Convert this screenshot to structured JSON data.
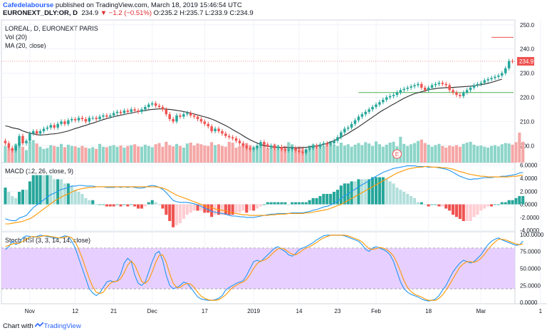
{
  "header": {
    "author": "Cafedelabourse",
    "published": "published on TradingView.com, March 18, 2019 15:46:54 UTC",
    "symbol": "EURONEXT_DLY:OR, D",
    "last": "234.9",
    "change": "−1.2 (−0.51%)",
    "ohlc": "O:235.2 H:235.7 L:233.9 C:234.9"
  },
  "legend": {
    "title": "LOREAL, D, EURONEXT PARIS",
    "vol": "Vol (20)",
    "ma": "MA (20, close)",
    "macd": "MACD (12, 26, close, 9)",
    "rsi": "Stoch RSI (3, 3, 14, 14, close)"
  },
  "footer": {
    "prefix": "Chart with",
    "brand": "TradingView"
  },
  "colors": {
    "up": "#26a69a",
    "down": "#ef5350",
    "ma": "#2b2b2b",
    "macd": "#2196f3",
    "signal": "#ff9800",
    "rsi_band": "#e1c4ff",
    "grid": "#f0f3fa",
    "hline_red": "#ef5350",
    "hline_green": "#4caf50"
  },
  "chart_data": [
    {
      "type": "candlestick",
      "pane": "price",
      "title": "LOREAL, D, EURONEXT PARIS",
      "ylim": [
        193,
        252
      ],
      "y_ticks": [
        200,
        210,
        220,
        230,
        240,
        250
      ],
      "x_labels": [
        {
          "i": 7,
          "label": "Nov"
        },
        {
          "i": 20,
          "label": "12"
        },
        {
          "i": 31,
          "label": "21"
        },
        {
          "i": 42,
          "label": "Dec"
        },
        {
          "i": 57,
          "label": "17"
        },
        {
          "i": 71,
          "label": "2019"
        },
        {
          "i": 84,
          "label": "14"
        },
        {
          "i": 95,
          "label": "23"
        },
        {
          "i": 106,
          "label": "Feb"
        },
        {
          "i": 121,
          "label": "18"
        },
        {
          "i": 136,
          "label": "Mar"
        },
        {
          "i": 153,
          "label": "1"
        }
      ],
      "last_price_label": "234.9",
      "horizontal_lines": [
        {
          "y": 244.8,
          "color": "red",
          "from": 139
        },
        {
          "y": 222,
          "color": "green",
          "from": 101
        }
      ],
      "earnings_marker": {
        "i": 112,
        "label": "E"
      },
      "close": [
        201,
        199,
        198,
        200,
        204,
        201,
        202,
        205,
        206,
        205,
        206,
        207,
        207.5,
        208.5,
        207.5,
        209,
        210,
        209,
        210.5,
        211,
        210.5,
        211.5,
        211,
        210,
        211.5,
        211.5,
        211,
        212,
        212.5,
        212,
        212.5,
        213.5,
        214,
        213.5,
        214.5,
        214,
        215,
        214.5,
        214,
        215,
        216,
        217,
        217.5,
        216.5,
        216,
        215,
        213,
        211,
        210,
        212.5,
        212,
        213,
        213.5,
        212.5,
        212,
        211,
        210,
        209,
        208,
        206,
        207,
        206,
        205,
        204,
        203.5,
        203,
        202,
        201,
        200,
        199,
        198.5,
        199,
        200,
        201.5,
        200.5,
        199.5,
        200,
        199,
        199.5,
        198.5,
        198,
        198.5,
        199,
        198,
        197.5,
        197,
        198.5,
        199,
        200,
        199.5,
        200.5,
        201,
        200.5,
        201,
        202,
        203.5,
        205.5,
        207,
        207.5,
        209,
        210.5,
        212,
        213,
        214,
        215,
        216,
        217,
        218,
        219,
        220,
        220.5,
        221,
        222,
        223,
        223.5,
        224,
        224.5,
        225,
        225.5,
        224,
        223,
        224,
        225,
        225.5,
        226,
        225.5,
        225,
        223,
        222,
        221,
        220.5,
        222,
        223,
        224,
        225,
        225.5,
        226,
        227,
        227.5,
        228,
        228.5,
        229,
        230,
        232,
        235,
        234.9
      ],
      "ma": [
        208.2,
        207.9,
        207.4,
        207.1,
        206.8,
        206.1,
        205.6,
        205.2,
        204.9,
        204.6,
        204.4,
        204.5,
        204.6,
        204.8,
        204.9,
        205.1,
        205.4,
        205.7,
        206.1,
        206.6,
        207.1,
        207.5,
        208,
        208.4,
        208.9,
        209.3,
        209.8,
        210.3,
        210.8,
        211.2,
        211.6,
        212,
        212.3,
        212.6,
        212.9,
        213.2,
        213.5,
        213.8,
        214.1,
        214.4,
        214.6,
        214.8,
        215,
        215.1,
        215.2,
        215.2,
        215.1,
        215,
        214.8,
        214.6,
        214.4,
        214.1,
        213.8,
        213.5,
        213.1,
        212.7,
        212.3,
        211.9,
        211.5,
        211,
        210.4,
        209.7,
        209,
        208.3,
        207.5,
        206.6,
        205.8,
        205,
        204.1,
        203.2,
        202.4,
        201.7,
        201.1,
        200.5,
        200,
        199.8,
        199.6,
        199.4,
        199.3,
        199.3,
        199.3,
        199.2,
        199.2,
        199.1,
        199.1,
        199.2,
        199.3,
        199.5,
        199.7,
        199.9,
        200.2,
        200.5,
        201,
        201.5,
        202.1,
        202.8,
        203.5,
        204.3,
        205.1,
        206,
        206.9,
        207.8,
        208.8,
        209.8,
        210.8,
        211.8,
        212.8,
        213.8,
        214.7,
        215.5,
        216.4,
        217.2,
        218,
        218.8,
        219.6,
        220.3,
        220.9,
        221.5,
        221.9,
        222.3,
        222.7,
        223.1,
        223.4,
        223.6,
        223.8,
        223.9,
        224,
        224,
        224.1,
        224.2,
        224.3,
        224.4,
        224.5,
        224.6,
        224.8,
        225,
        225.2,
        225.5,
        225.8,
        226.2,
        226.6,
        227.1,
        227.5
      ]
    },
    {
      "type": "bar",
      "pane": "volume",
      "title": "Vol (20)",
      "values": [
        40,
        34,
        33,
        45,
        48,
        38,
        30,
        50,
        54,
        46,
        38,
        33,
        35,
        42,
        40,
        38,
        45,
        37,
        43,
        40,
        39,
        36,
        40,
        36,
        34,
        37,
        33,
        45,
        38,
        37,
        40,
        42,
        38,
        41,
        36,
        40,
        42,
        44,
        39,
        38,
        43,
        40,
        37,
        44,
        47,
        38,
        50,
        42,
        39,
        45,
        40,
        36,
        46,
        48,
        41,
        46,
        44,
        41,
        40,
        49,
        42,
        44,
        40,
        38,
        50,
        48,
        36,
        40,
        44,
        47,
        42,
        38,
        40,
        43,
        46,
        35,
        39,
        44,
        41,
        37,
        40,
        49,
        44,
        36,
        39,
        38,
        30,
        41,
        44,
        38,
        42,
        40,
        46,
        52,
        43,
        40,
        48,
        41,
        44,
        38,
        43,
        47,
        42,
        49,
        46,
        40,
        51,
        44,
        38,
        43,
        48,
        50,
        39,
        62,
        45,
        40,
        44,
        47,
        52,
        55,
        47,
        43,
        38,
        42,
        45,
        40,
        36,
        41,
        39,
        42,
        38,
        45,
        48,
        50,
        43,
        40,
        41,
        38,
        36,
        40,
        42,
        39,
        44,
        47,
        46,
        43,
        49,
        72,
        50
      ]
    },
    {
      "type": "line",
      "pane": "macd",
      "title": "MACD (12, 26, close, 9)",
      "ylim": [
        -4.2,
        6.4
      ],
      "y_ticks": [
        -4,
        -2,
        0,
        2,
        4,
        6
      ],
      "series": [
        {
          "name": "MACD",
          "values": [
            -2.2,
            -2.4,
            -2.5,
            -2.5,
            -2.1,
            -1.9,
            -1.7,
            -1.1,
            -0.5,
            -0.1,
            0.3,
            0.7,
            1.1,
            1.5,
            1.7,
            2,
            2.3,
            2.4,
            2.6,
            2.8,
            2.8,
            2.9,
            2.9,
            2.8,
            2.8,
            2.8,
            2.7,
            2.7,
            2.7,
            2.6,
            2.6,
            2.6,
            2.7,
            2.6,
            2.7,
            2.6,
            2.7,
            2.6,
            2.5,
            2.5,
            2.6,
            2.8,
            2.9,
            2.8,
            2.6,
            2.3,
            1.8,
            1.2,
            0.6,
            0.4,
            0.3,
            0.3,
            0.3,
            0.2,
            0.1,
            -0.1,
            -0.3,
            -0.6,
            -0.8,
            -1.1,
            -1.2,
            -1.3,
            -1.4,
            -1.5,
            -1.7,
            -1.8,
            -1.8,
            -1.9,
            -1.9,
            -2,
            -2,
            -2,
            -1.9,
            -1.8,
            -1.7,
            -1.6,
            -1.5,
            -1.5,
            -1.4,
            -1.4,
            -1.4,
            -1.4,
            -1.3,
            -1.3,
            -1.3,
            -1.3,
            -1.2,
            -1.1,
            -0.9,
            -0.8,
            -0.6,
            -0.4,
            -0.3,
            -0.1,
            0.2,
            0.5,
            0.9,
            1.3,
            1.6,
            2,
            2.3,
            2.7,
            3,
            3.3,
            3.6,
            4,
            4.3,
            4.6,
            4.9,
            5.1,
            5.3,
            5.5,
            5.6,
            5.7,
            5.8,
            5.9,
            5.9,
            5.9,
            5.8,
            5.8,
            5.8,
            5.7,
            5.7,
            5.7,
            5.6,
            5.5,
            5.4,
            5.2,
            4.9,
            4.6,
            4.3,
            4.1,
            3.9,
            3.8,
            3.9,
            3.9,
            4,
            4.1,
            4.1,
            4.1,
            4.2,
            4.2,
            4.3,
            4.3,
            4.4,
            4.5,
            4.6,
            4.8,
            4.9
          ]
        },
        {
          "name": "Signal",
          "values": [
            -3,
            -3,
            -2.9,
            -2.8,
            -2.7,
            -2.6,
            -2.4,
            -2.2,
            -1.9,
            -1.5,
            -1.1,
            -0.7,
            -0.3,
            0.1,
            0.5,
            0.8,
            1.1,
            1.4,
            1.6,
            1.9,
            2.1,
            2.3,
            2.4,
            2.5,
            2.6,
            2.6,
            2.7,
            2.7,
            2.7,
            2.7,
            2.7,
            2.7,
            2.7,
            2.7,
            2.7,
            2.7,
            2.7,
            2.7,
            2.7,
            2.7,
            2.7,
            2.7,
            2.7,
            2.7,
            2.6,
            2.5,
            2.3,
            2,
            1.7,
            1.4,
            1.2,
            1,
            0.8,
            0.6,
            0.4,
            0.2,
            0,
            -0.2,
            -0.4,
            -0.5,
            -0.7,
            -0.8,
            -0.9,
            -1,
            -1.2,
            -1.3,
            -1.4,
            -1.5,
            -1.6,
            -1.6,
            -1.7,
            -1.7,
            -1.7,
            -1.7,
            -1.7,
            -1.7,
            -1.6,
            -1.6,
            -1.5,
            -1.5,
            -1.5,
            -1.4,
            -1.4,
            -1.4,
            -1.4,
            -1.4,
            -1.3,
            -1.3,
            -1.2,
            -1.1,
            -1,
            -0.9,
            -0.8,
            -0.6,
            -0.4,
            -0.2,
            0,
            0.3,
            0.6,
            0.9,
            1.2,
            1.5,
            1.8,
            2.1,
            2.4,
            2.7,
            3,
            3.3,
            3.6,
            3.9,
            4.2,
            4.5,
            4.8,
            5,
            5.2,
            5.4,
            5.5,
            5.6,
            5.7,
            5.7,
            5.8,
            5.8,
            5.7,
            5.7,
            5.7,
            5.6,
            5.6,
            5.5,
            5.4,
            5.2,
            5,
            4.9,
            4.7,
            4.6,
            4.5,
            4.4,
            4.3,
            4.3,
            4.2,
            4.2,
            4.2,
            4.2,
            4.2,
            4.2,
            4.2,
            4.3,
            4.3,
            4.4,
            4.5
          ]
        }
      ]
    },
    {
      "type": "line",
      "pane": "stoch_rsi",
      "title": "Stoch RSI (3, 3, 14, 14, close)",
      "ylim": [
        -2,
        104
      ],
      "y_ticks": [
        0,
        25,
        50,
        75,
        100
      ],
      "y_tick_labels": [
        "0.0000",
        "25.0000",
        "50.0000",
        "75.0000",
        "100.0000"
      ],
      "band": [
        20,
        80
      ],
      "series": [
        {
          "name": "K",
          "values": [
            78,
            82,
            90,
            85,
            88,
            95,
            98,
            97,
            96,
            97,
            99,
            98,
            97,
            96,
            95,
            94,
            96,
            98,
            97,
            90,
            80,
            65,
            50,
            35,
            20,
            14,
            10,
            14,
            22,
            30,
            32,
            30,
            32,
            42,
            58,
            65,
            60,
            40,
            28,
            25,
            30,
            45,
            60,
            72,
            75,
            62,
            40,
            25,
            20,
            22,
            25,
            30,
            28,
            22,
            15,
            8,
            5,
            4,
            3,
            3,
            4,
            6,
            10,
            18,
            22,
            25,
            28,
            30,
            32,
            40,
            50,
            60,
            62,
            60,
            65,
            70,
            75,
            80,
            82,
            78,
            75,
            70,
            68,
            72,
            78,
            80,
            82,
            85,
            88,
            92,
            95,
            98,
            99,
            99,
            99,
            99,
            99,
            98,
            96,
            94,
            92,
            90,
            85,
            78,
            75,
            80,
            82,
            80,
            78,
            75,
            70,
            60,
            45,
            30,
            20,
            15,
            12,
            10,
            8,
            5,
            3,
            2,
            3,
            5,
            10,
            18,
            25,
            35,
            45,
            52,
            58,
            62,
            60,
            58,
            60,
            65,
            70,
            78,
            85,
            90,
            93,
            95,
            92,
            90,
            88,
            86,
            84,
            85,
            90
          ]
        },
        {
          "name": "D",
          "values": [
            82,
            84,
            86,
            87,
            87,
            90,
            93,
            96,
            97,
            96,
            97,
            98,
            98,
            97,
            96,
            95,
            95,
            96,
            97,
            95,
            89,
            78,
            65,
            50,
            35,
            23,
            15,
            13,
            15,
            22,
            28,
            31,
            31,
            35,
            44,
            55,
            61,
            55,
            43,
            31,
            28,
            33,
            45,
            59,
            69,
            70,
            59,
            42,
            28,
            22,
            22,
            26,
            28,
            27,
            22,
            15,
            9,
            6,
            4,
            3,
            3,
            4,
            7,
            11,
            17,
            22,
            25,
            28,
            30,
            34,
            41,
            50,
            57,
            61,
            62,
            65,
            70,
            75,
            79,
            80,
            78,
            74,
            71,
            70,
            73,
            77,
            80,
            82,
            85,
            88,
            92,
            95,
            97,
            99,
            99,
            99,
            99,
            99,
            98,
            96,
            94,
            92,
            89,
            84,
            79,
            78,
            79,
            81,
            80,
            78,
            74,
            68,
            58,
            45,
            32,
            22,
            16,
            12,
            10,
            8,
            5,
            3,
            3,
            3,
            6,
            11,
            18,
            26,
            35,
            44,
            52,
            57,
            60,
            60,
            59,
            61,
            65,
            71,
            78,
            84,
            89,
            93,
            93,
            92,
            90,
            88,
            86,
            85,
            86
          ]
        }
      ]
    }
  ]
}
